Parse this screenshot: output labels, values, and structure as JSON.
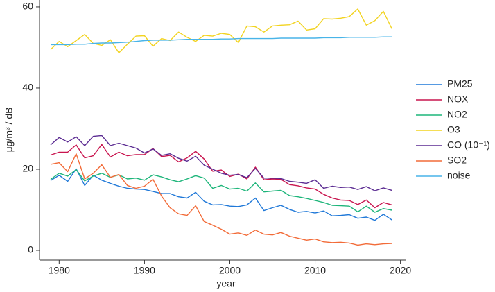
{
  "chart_data": {
    "type": "line",
    "x_label": "year",
    "y_label": "μg/m³ / dB",
    "x": [
      1979,
      1980,
      1981,
      1982,
      1983,
      1984,
      1985,
      1986,
      1987,
      1988,
      1989,
      1990,
      1991,
      1992,
      1993,
      1994,
      1995,
      1996,
      1997,
      1998,
      1999,
      2000,
      2001,
      2002,
      2003,
      2004,
      2005,
      2006,
      2007,
      2008,
      2009,
      2010,
      2011,
      2012,
      2013,
      2014,
      2015,
      2016,
      2017,
      2018,
      2019
    ],
    "xlim": [
      1977.7,
      2020.6
    ],
    "xticks": [
      1980,
      1990,
      2000,
      2010,
      2020
    ],
    "ylim": [
      -2.4,
      61.7
    ],
    "yticks": [
      0,
      20,
      40,
      60
    ],
    "grid": false,
    "legend": "right",
    "series": [
      {
        "name": "PM25",
        "color": "#1f78d8",
        "values": [
          17.2,
          18.5,
          17.0,
          20.1,
          16.0,
          18.5,
          17.3,
          16.5,
          15.8,
          15.3,
          15.1,
          15.0,
          14.5,
          14.0,
          14.0,
          13.2,
          12.9,
          14.3,
          12.1,
          11.2,
          11.3,
          10.9,
          10.8,
          11.2,
          12.9,
          9.8,
          10.5,
          11.1,
          10.1,
          9.4,
          9.6,
          9.2,
          9.7,
          8.5,
          8.6,
          8.8,
          7.9,
          8.2,
          7.4,
          8.9,
          7.5
        ]
      },
      {
        "name": "NOX",
        "color": "#c9154f",
        "values": [
          23.5,
          24.2,
          24.2,
          26.0,
          22.8,
          23.3,
          26.1,
          23.0,
          24.2,
          23.3,
          23.6,
          23.6,
          25.1,
          23.1,
          23.4,
          21.8,
          22.8,
          24.4,
          22.5,
          19.5,
          19.8,
          18.2,
          18.8,
          17.6,
          20.5,
          17.4,
          17.6,
          17.5,
          16.2,
          15.9,
          15.4,
          15.1,
          13.8,
          12.9,
          12.4,
          12.3,
          11.3,
          12.4,
          10.5,
          11.8,
          11.2
        ]
      },
      {
        "name": "NO2",
        "color": "#1db57a",
        "values": [
          17.5,
          19.0,
          18.3,
          19.9,
          17.1,
          18.3,
          19.0,
          18.0,
          18.6,
          17.6,
          17.8,
          17.3,
          18.6,
          18.1,
          17.4,
          16.9,
          17.6,
          18.4,
          17.8,
          15.3,
          16.0,
          15.1,
          15.3,
          14.6,
          16.6,
          14.4,
          14.6,
          14.8,
          13.5,
          13.2,
          12.8,
          12.3,
          11.8,
          11.1,
          11.0,
          10.9,
          9.5,
          10.9,
          9.4,
          10.3,
          9.9
        ]
      },
      {
        "name": "O3",
        "color": "#f2d31f",
        "values": [
          49.5,
          51.5,
          50.2,
          51.7,
          53.2,
          51.0,
          50.5,
          51.9,
          48.7,
          50.8,
          52.8,
          52.9,
          50.3,
          52.2,
          51.7,
          53.8,
          52.5,
          51.5,
          53.0,
          52.8,
          53.5,
          53.2,
          51.2,
          55.3,
          55.1,
          53.8,
          55.3,
          55.5,
          55.6,
          56.5,
          54.3,
          54.6,
          57.1,
          57.0,
          57.2,
          57.6,
          59.5,
          55.5,
          56.6,
          58.9,
          54.6
        ]
      },
      {
        "name": "CO (10⁻¹)",
        "color": "#5b2b92",
        "values": [
          26.0,
          27.8,
          26.7,
          28.0,
          25.8,
          28.1,
          28.3,
          25.8,
          26.4,
          25.8,
          25.2,
          24.0,
          25.0,
          23.4,
          23.8,
          22.7,
          22.0,
          23.2,
          21.0,
          20.0,
          19.0,
          18.5,
          18.7,
          17.9,
          20.2,
          17.8,
          17.8,
          17.7,
          17.0,
          16.8,
          16.5,
          17.4,
          15.3,
          15.8,
          15.5,
          15.6,
          15.0,
          15.7,
          14.7,
          15.4,
          14.8
        ]
      },
      {
        "name": "SO2",
        "color": "#f26b38",
        "values": [
          21.2,
          21.6,
          19.4,
          23.8,
          17.6,
          19.0,
          21.1,
          18.0,
          18.7,
          16.0,
          15.3,
          15.8,
          17.5,
          13.4,
          10.5,
          9.0,
          8.6,
          11.0,
          7.1,
          6.2,
          5.2,
          4.0,
          4.3,
          3.7,
          5.0,
          4.0,
          3.8,
          4.4,
          3.5,
          3.0,
          2.5,
          2.8,
          2.1,
          1.9,
          2.0,
          1.8,
          1.3,
          1.6,
          1.4,
          1.6,
          1.7
        ]
      },
      {
        "name": "noise",
        "color": "#48b4e8",
        "values": [
          50.7,
          50.7,
          50.7,
          50.8,
          50.8,
          51.0,
          51.1,
          51.1,
          51.2,
          51.3,
          51.5,
          51.7,
          51.8,
          51.8,
          51.8,
          51.9,
          52.0,
          52.0,
          52.0,
          52.0,
          52.1,
          52.1,
          52.2,
          52.2,
          52.2,
          52.2,
          52.2,
          52.3,
          52.3,
          52.3,
          52.3,
          52.3,
          52.4,
          52.4,
          52.4,
          52.5,
          52.5,
          52.5,
          52.5,
          52.6,
          52.6
        ]
      }
    ]
  }
}
